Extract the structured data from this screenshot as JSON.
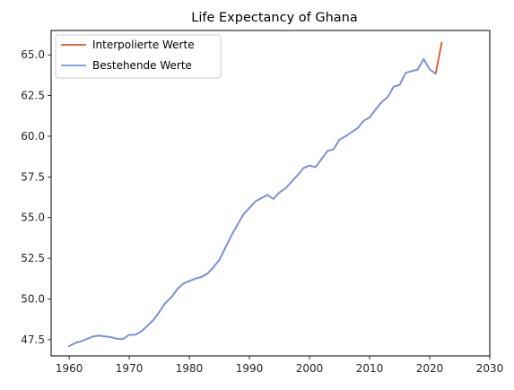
{
  "chart_data": {
    "type": "line",
    "title": "Life Expectancy of Ghana",
    "xlabel": "",
    "ylabel": "",
    "xlim": [
      1957,
      2030
    ],
    "ylim": [
      46.5,
      66.5
    ],
    "xticks": [
      1960,
      1970,
      1980,
      1990,
      2000,
      2010,
      2020,
      2030
    ],
    "yticks": [
      47.5,
      50.0,
      52.5,
      55.0,
      57.5,
      60.0,
      62.5,
      65.0
    ],
    "xtick_labels": [
      "1960",
      "1970",
      "1980",
      "1990",
      "2000",
      "2010",
      "2020",
      "2030"
    ],
    "ytick_labels": [
      "47.5",
      "50.0",
      "52.5",
      "55.0",
      "57.5",
      "60.0",
      "62.5",
      "65.0"
    ],
    "grid": false,
    "legend": "upper-left",
    "series": [
      {
        "name": "Interpolierte Werte",
        "color": "#e8501e",
        "x": [
          1960,
          1961,
          1962,
          1963,
          1964,
          1965,
          1966,
          1967,
          1968,
          1969,
          1970,
          1971,
          1972,
          1973,
          1974,
          1975,
          1976,
          1977,
          1978,
          1979,
          1980,
          1981,
          1982,
          1983,
          1984,
          1985,
          1986,
          1987,
          1988,
          1989,
          1990,
          1991,
          1992,
          1993,
          1994,
          1995,
          1996,
          1997,
          1998,
          1999,
          2000,
          2001,
          2002,
          2003,
          2004,
          2005,
          2006,
          2007,
          2008,
          2009,
          2010,
          2011,
          2012,
          2013,
          2014,
          2015,
          2016,
          2017,
          2018,
          2019,
          2020,
          2021,
          2022
        ],
        "values": [
          47.1,
          47.3,
          47.4,
          47.55,
          47.7,
          47.75,
          47.7,
          47.65,
          47.55,
          47.55,
          47.8,
          47.8,
          48.0,
          48.35,
          48.7,
          49.2,
          49.75,
          50.1,
          50.6,
          50.95,
          51.1,
          51.25,
          51.35,
          51.55,
          51.95,
          52.4,
          53.15,
          53.9,
          54.55,
          55.2,
          55.6,
          56.0,
          56.2,
          56.4,
          56.15,
          56.55,
          56.8,
          57.2,
          57.6,
          58.05,
          58.2,
          58.1,
          58.6,
          59.1,
          59.2,
          59.8,
          60.0,
          60.25,
          60.5,
          60.95,
          61.15,
          61.65,
          62.1,
          62.4,
          63.05,
          63.15,
          63.9,
          64.0,
          64.1,
          64.75,
          64.1,
          63.85,
          65.75
        ]
      },
      {
        "name": "Bestehende Werte",
        "color": "#6d96e8",
        "x": [
          1960,
          1961,
          1962,
          1963,
          1964,
          1965,
          1966,
          1967,
          1968,
          1969,
          1970,
          1971,
          1972,
          1973,
          1974,
          1975,
          1976,
          1977,
          1978,
          1979,
          1980,
          1981,
          1982,
          1983,
          1984,
          1985,
          1986,
          1987,
          1988,
          1989,
          1990,
          1991,
          1992,
          1993,
          1994,
          1995,
          1996,
          1997,
          1998,
          1999,
          2000,
          2001,
          2002,
          2003,
          2004,
          2005,
          2006,
          2007,
          2008,
          2009,
          2010,
          2011,
          2012,
          2013,
          2014,
          2015,
          2016,
          2017,
          2018,
          2019,
          2020,
          2021
        ],
        "values": [
          47.1,
          47.3,
          47.4,
          47.55,
          47.7,
          47.75,
          47.7,
          47.65,
          47.55,
          47.55,
          47.8,
          47.8,
          48.0,
          48.35,
          48.7,
          49.2,
          49.75,
          50.1,
          50.6,
          50.95,
          51.1,
          51.25,
          51.35,
          51.55,
          51.95,
          52.4,
          53.15,
          53.9,
          54.55,
          55.2,
          55.6,
          56.0,
          56.2,
          56.4,
          56.15,
          56.55,
          56.8,
          57.2,
          57.6,
          58.05,
          58.2,
          58.1,
          58.6,
          59.1,
          59.2,
          59.8,
          60.0,
          60.25,
          60.5,
          60.95,
          61.15,
          61.65,
          62.1,
          62.4,
          63.05,
          63.15,
          63.9,
          64.0,
          64.1,
          64.75,
          64.1,
          63.85
        ]
      }
    ]
  }
}
